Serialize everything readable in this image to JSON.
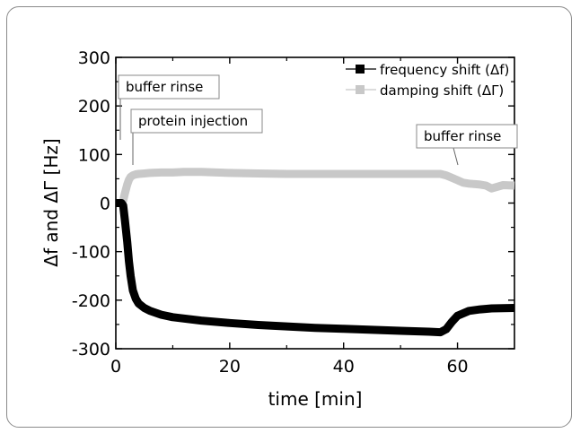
{
  "chart_data": {
    "type": "line",
    "xlabel": "time [min]",
    "ylabel": "Δf and ΔΓ [Hz]",
    "xlim": [
      0,
      70
    ],
    "ylim": [
      -300,
      300
    ],
    "x_ticks": [
      "0",
      "20",
      "40",
      "60"
    ],
    "y_ticks": [
      "300",
      "200",
      "100",
      "0",
      "-100",
      "-200",
      "-300"
    ],
    "grid": false,
    "legend_position": "top-right",
    "series": [
      {
        "name": "frequency shift (Δf)",
        "color": "#000000",
        "x": [
          0,
          1,
          1.3,
          1.6,
          2,
          2.3,
          2.6,
          3,
          3.5,
          4,
          5,
          6,
          8,
          10,
          15,
          20,
          25,
          30,
          35,
          40,
          45,
          50,
          55,
          57,
          58,
          59,
          60,
          62,
          64,
          66,
          70
        ],
        "y": [
          0,
          0,
          -5,
          -35,
          -80,
          -120,
          -150,
          -180,
          -197,
          -207,
          -216,
          -222,
          -230,
          -235,
          -242,
          -247,
          -251,
          -254,
          -257,
          -259,
          -261,
          -263,
          -265,
          -266,
          -260,
          -245,
          -232,
          -222,
          -219,
          -217,
          -216
        ]
      },
      {
        "name": "damping shift (ΔΓ)",
        "color": "#c8c8c8",
        "x": [
          0,
          1,
          1.3,
          1.6,
          2,
          2.3,
          2.6,
          3,
          3.5,
          4,
          5,
          6,
          8,
          10,
          12,
          15,
          20,
          25,
          30,
          35,
          40,
          45,
          50,
          55,
          57,
          58,
          59,
          60,
          61,
          62,
          64,
          65,
          66,
          68,
          70
        ],
        "y": [
          0,
          0,
          5,
          20,
          38,
          48,
          54,
          57,
          59,
          60,
          61,
          62,
          63,
          63,
          64,
          64,
          62,
          61,
          60,
          60,
          60,
          60,
          60,
          60,
          60,
          57,
          52,
          47,
          42,
          40,
          38,
          36,
          30,
          37,
          36
        ]
      }
    ],
    "annotations": [
      {
        "text": "buffer rinse",
        "x": 0.5
      },
      {
        "text": "protein injection",
        "x": 2.5
      },
      {
        "text": "buffer rinse",
        "x": 58
      }
    ]
  }
}
